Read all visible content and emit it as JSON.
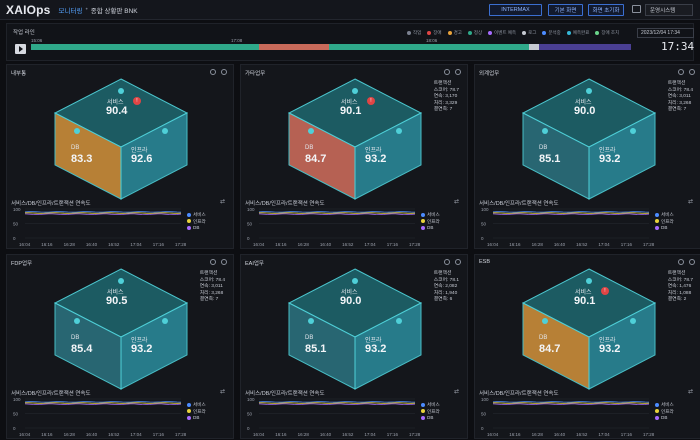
{
  "app": {
    "logo": "XAIOps",
    "crumb1": "모니터링",
    "crumb_sep": "•",
    "crumb2": "종합 상황판 BNK"
  },
  "topbar": {
    "btn1": "INTERMAX",
    "btn2": "기본 화면",
    "btn3": "화면 초기화",
    "select": "운영시스템"
  },
  "timeline": {
    "title": "작업 라인",
    "legend": [
      {
        "label": "작업",
        "color": "#7b8190"
      },
      {
        "label": "장애",
        "color": "#e04545"
      },
      {
        "label": "경고",
        "color": "#e8a23a"
      },
      {
        "label": "정상",
        "color": "#2fa98a"
      },
      {
        "label": "이벤트 예측",
        "color": "#a66bff"
      },
      {
        "label": "로그",
        "color": "#c5c9d1"
      },
      {
        "label": "분석중",
        "color": "#4c8cff"
      },
      {
        "label": "예측완료",
        "color": "#35b7d6"
      },
      {
        "label": "장애 조치",
        "color": "#6ad48a"
      }
    ],
    "ticks": [
      "15:06",
      "17:08",
      "18:06"
    ],
    "date": "2023/12/04 17:34",
    "clock": "17:34"
  },
  "labels": {
    "service": "서비스",
    "db": "DB",
    "infra": "인프라",
    "chart_title": "서비스/DB/인프라/트랜잭션 연속도",
    "txn_title": "트랜잭션",
    "legend_service": "서비스",
    "legend_infra": "인프라",
    "legend_db": "DB"
  },
  "x_ticks": [
    "16:04",
    "16:16",
    "16:28",
    "16:40",
    "16:52",
    "17:04",
    "17:16",
    "17:28"
  ],
  "panels": [
    {
      "title": "내부통",
      "service": "90.4",
      "db": "83.3",
      "infra": "92.6",
      "db_color": "#c98c3a",
      "txn": null,
      "alert": true
    },
    {
      "title": "가타업무",
      "service": "90.1",
      "db": "84.7",
      "infra": "93.2",
      "db_color": "#c86a5a",
      "txn": [
        "스코어: 78.7",
        "연속: 3,170",
        "처리: 3,329",
        "결연측: 7"
      ],
      "alert": true
    },
    {
      "title": "외계업무",
      "service": "90.0",
      "db": "85.1",
      "infra": "93.2",
      "db_color": "#2b6f7c",
      "txn": [
        "스코어: 78.4",
        "연속: 3,011",
        "처리: 3,268",
        "결연측: 7"
      ],
      "alert": false
    },
    {
      "title": "FDP업무",
      "service": "90.5",
      "db": "85.4",
      "infra": "93.2",
      "db_color": "#2b6f7c",
      "txn": [
        "스코어: 78.4",
        "연속: 3,011",
        "처리: 3,268",
        "결연측: 7"
      ],
      "alert": false
    },
    {
      "title": "EAI업무",
      "service": "90.0",
      "db": "85.1",
      "infra": "93.2",
      "db_color": "#2b6f7c",
      "txn": [
        "스코어: 78.1",
        "연속: 2,082",
        "처리: 1,940",
        "결연측: 6"
      ],
      "alert": false
    },
    {
      "title": "ESB",
      "service": "90.1",
      "db": "84.7",
      "infra": "93.2",
      "db_color": "#c98c3a",
      "txn": [
        "스코어: 78.7",
        "연속: 1,476",
        "처리: 1,088",
        "결연측: 2"
      ],
      "alert": true
    }
  ],
  "colors": {
    "service_line": "#4c8cff",
    "infra_line": "#e8d23a",
    "db_line": "#a66bff",
    "cube_edge": "#4fd0d8"
  }
}
